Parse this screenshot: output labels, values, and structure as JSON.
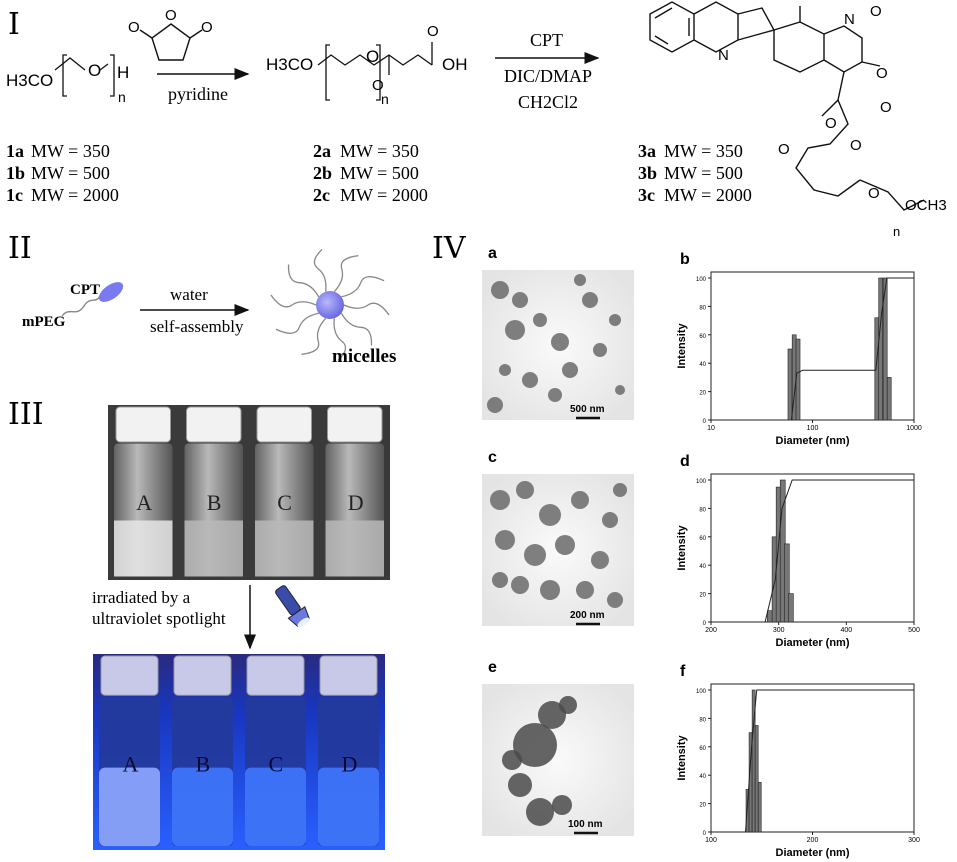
{
  "panels": {
    "p1": "I",
    "p2": "II",
    "p3": "III",
    "p4": "IV"
  },
  "scheme": {
    "reagent1_above": "",
    "reagent1_below": "pyridine",
    "reagent2_above": "CPT",
    "reagent2_below1": "DIC/DMAP",
    "reagent2_below2": "CH2Cl2",
    "compound1": {
      "label1": "1a",
      "mw1": "MW = 350",
      "label2": "1b",
      "mw2": "MW = 500",
      "label3": "1c",
      "mw3": "MW = 2000"
    },
    "compound2": {
      "label1": "2a",
      "mw1": "MW = 350",
      "label2": "2b",
      "mw2": "MW = 500",
      "label3": "2c",
      "mw3": "MW = 2000"
    },
    "compound3": {
      "label1": "3a",
      "mw1": "MW = 350",
      "label2": "3b",
      "mw2": "MW = 500",
      "label3": "3c",
      "mw3": "MW = 2000"
    },
    "atoms": {
      "h3co": "H3CO",
      "o": "O",
      "h": "H",
      "n": "n",
      "oh": "OH",
      "och3": "OCH3",
      "N": "N"
    }
  },
  "assembly": {
    "cpt": "CPT",
    "mpeg": "mPEG",
    "arrow_top": "water",
    "arrow_bottom": "self-assembly",
    "product": "micelles"
  },
  "vials": {
    "labels": [
      "A",
      "B",
      "C",
      "D"
    ],
    "caption1": "irradiated by a",
    "caption2": "ultraviolet spotlight"
  },
  "tem": [
    {
      "letter": "a",
      "scale": "500 nm"
    },
    {
      "letter": "c",
      "scale": "200 nm"
    },
    {
      "letter": "e",
      "scale": "100 nm"
    }
  ],
  "dls_labels": {
    "ylabel": "Intensity",
    "xlabel": "Diameter (nm)"
  },
  "chart_data": [
    {
      "type": "bar",
      "letter": "b",
      "xscale": "log",
      "xlim": [
        10,
        1000
      ],
      "xticks": [
        "10",
        "100",
        "1000"
      ],
      "ylim": [
        0,
        100
      ],
      "yticks": [
        "0",
        "20",
        "40",
        "60",
        "80",
        "100"
      ],
      "bars": [
        {
          "x": 60,
          "y": 50
        },
        {
          "x": 66,
          "y": 60
        },
        {
          "x": 72,
          "y": 57
        },
        {
          "x": 430,
          "y": 72
        },
        {
          "x": 470,
          "y": 100
        },
        {
          "x": 520,
          "y": 100
        },
        {
          "x": 570,
          "y": 30
        }
      ],
      "cumulative": [
        [
          62,
          0
        ],
        [
          70,
          33
        ],
        [
          80,
          35
        ],
        [
          420,
          35
        ],
        [
          480,
          75
        ],
        [
          540,
          100
        ],
        [
          1000,
          100
        ]
      ]
    },
    {
      "type": "bar",
      "letter": "d",
      "xscale": "linear",
      "xlim": [
        200,
        500
      ],
      "xticks": [
        "200",
        "300",
        "400",
        "500"
      ],
      "ylim": [
        0,
        100
      ],
      "yticks": [
        "0",
        "20",
        "40",
        "60",
        "80",
        "100"
      ],
      "bars": [
        {
          "x": 287,
          "y": 8
        },
        {
          "x": 294,
          "y": 60
        },
        {
          "x": 300,
          "y": 95
        },
        {
          "x": 306,
          "y": 100
        },
        {
          "x": 312,
          "y": 55
        },
        {
          "x": 318,
          "y": 20
        }
      ],
      "cumulative": [
        [
          280,
          0
        ],
        [
          295,
          30
        ],
        [
          305,
          80
        ],
        [
          320,
          100
        ],
        [
          500,
          100
        ]
      ]
    },
    {
      "type": "bar",
      "letter": "f",
      "xscale": "linear",
      "xlim": [
        100,
        300
      ],
      "xticks": [
        "100",
        "200",
        "300"
      ],
      "ylim": [
        0,
        100
      ],
      "yticks": [
        "0",
        "20",
        "40",
        "60",
        "80",
        "100"
      ],
      "bars": [
        {
          "x": 136,
          "y": 30
        },
        {
          "x": 139,
          "y": 70
        },
        {
          "x": 142,
          "y": 100
        },
        {
          "x": 145,
          "y": 75
        },
        {
          "x": 148,
          "y": 35
        }
      ],
      "cumulative": [
        [
          134,
          0
        ],
        [
          140,
          60
        ],
        [
          145,
          100
        ],
        [
          300,
          100
        ]
      ]
    }
  ]
}
